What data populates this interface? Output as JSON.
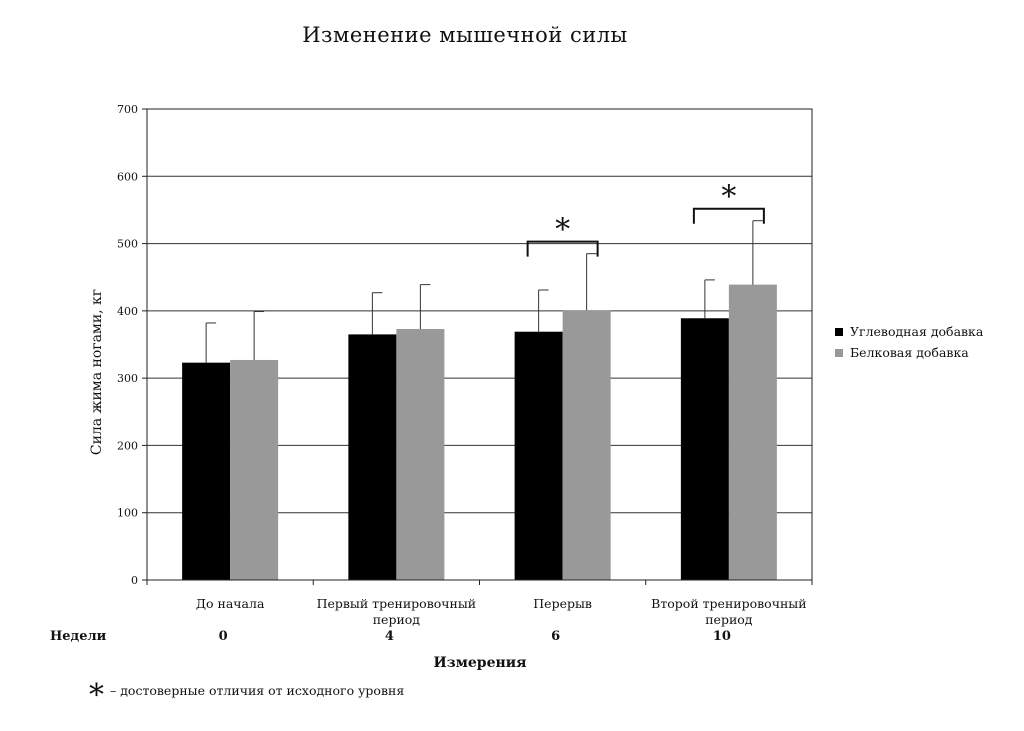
{
  "chart_data": {
    "type": "bar",
    "title": "Изменение мышечной силы",
    "ylabel": "Сила жима ногами, кг",
    "xlabel": "Измерения",
    "ylim": [
      0,
      700
    ],
    "yticks": [
      0,
      100,
      200,
      300,
      400,
      500,
      600,
      700
    ],
    "grid": true,
    "legend_position": "right",
    "categories": [
      [
        "До начала"
      ],
      [
        "Первый тренировочный",
        "период"
      ],
      [
        "Перерыв"
      ],
      [
        "Второй тренировочный",
        "период"
      ]
    ],
    "weeks_label": "Недели",
    "weeks": [
      "0",
      "4",
      "6",
      "10"
    ],
    "series": [
      {
        "name": "Углеводная добавка",
        "color": "#000000",
        "values": [
          323,
          365,
          369,
          389
        ],
        "errors": [
          59,
          62,
          62,
          57
        ]
      },
      {
        "name": "Белковая добавка",
        "color": "#999999",
        "values": [
          327,
          373,
          401,
          439
        ],
        "errors": [
          72,
          66,
          84,
          95
        ]
      }
    ],
    "significance": [
      {
        "category_index": 2,
        "symbol": "*"
      },
      {
        "category_index": 3,
        "symbol": "*"
      }
    ],
    "footnote": {
      "symbol": "*",
      "text": "–  достоверные отличия от исходного уровня"
    }
  }
}
